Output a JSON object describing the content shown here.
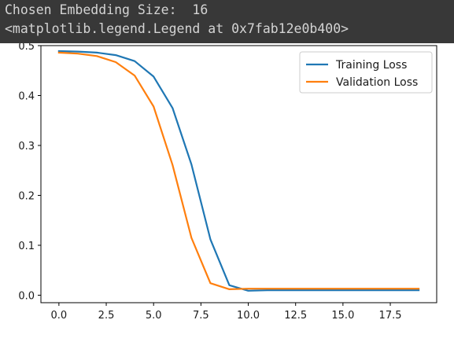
{
  "output": {
    "line1": "Chosen Embedding Size:  16",
    "line2": "<matplotlib.legend.Legend at 0x7fab12e0b400>"
  },
  "chart_data": {
    "type": "line",
    "title": "",
    "xlabel": "",
    "ylabel": "",
    "xlim": [
      -0.95,
      19.95
    ],
    "ylim": [
      -0.015,
      0.5
    ],
    "xticks": [
      0.0,
      2.5,
      5.0,
      7.5,
      10.0,
      12.5,
      15.0,
      17.5
    ],
    "xtick_labels": [
      "0.0",
      "2.5",
      "5.0",
      "7.5",
      "10.0",
      "12.5",
      "15.0",
      "17.5"
    ],
    "yticks": [
      0.0,
      0.1,
      0.2,
      0.3,
      0.4,
      0.5
    ],
    "ytick_labels": [
      "0.0",
      "0.1",
      "0.2",
      "0.3",
      "0.4",
      "0.5"
    ],
    "grid": false,
    "legend_position": "upper right",
    "x": [
      0,
      1,
      2,
      3,
      4,
      5,
      6,
      7,
      8,
      9,
      10,
      11,
      12,
      13,
      14,
      15,
      16,
      17,
      18,
      19
    ],
    "series": [
      {
        "name": "Training Loss",
        "color": "#1f77b4",
        "values": [
          0.489,
          0.488,
          0.486,
          0.481,
          0.469,
          0.438,
          0.375,
          0.262,
          0.112,
          0.02,
          0.009,
          0.01,
          0.01,
          0.01,
          0.01,
          0.01,
          0.01,
          0.01,
          0.01,
          0.01
        ]
      },
      {
        "name": "Validation Loss",
        "color": "#ff7f0e",
        "values": [
          0.486,
          0.484,
          0.479,
          0.467,
          0.44,
          0.378,
          0.261,
          0.115,
          0.024,
          0.012,
          0.013,
          0.013,
          0.013,
          0.013,
          0.013,
          0.013,
          0.013,
          0.013,
          0.013,
          0.013
        ]
      }
    ]
  }
}
